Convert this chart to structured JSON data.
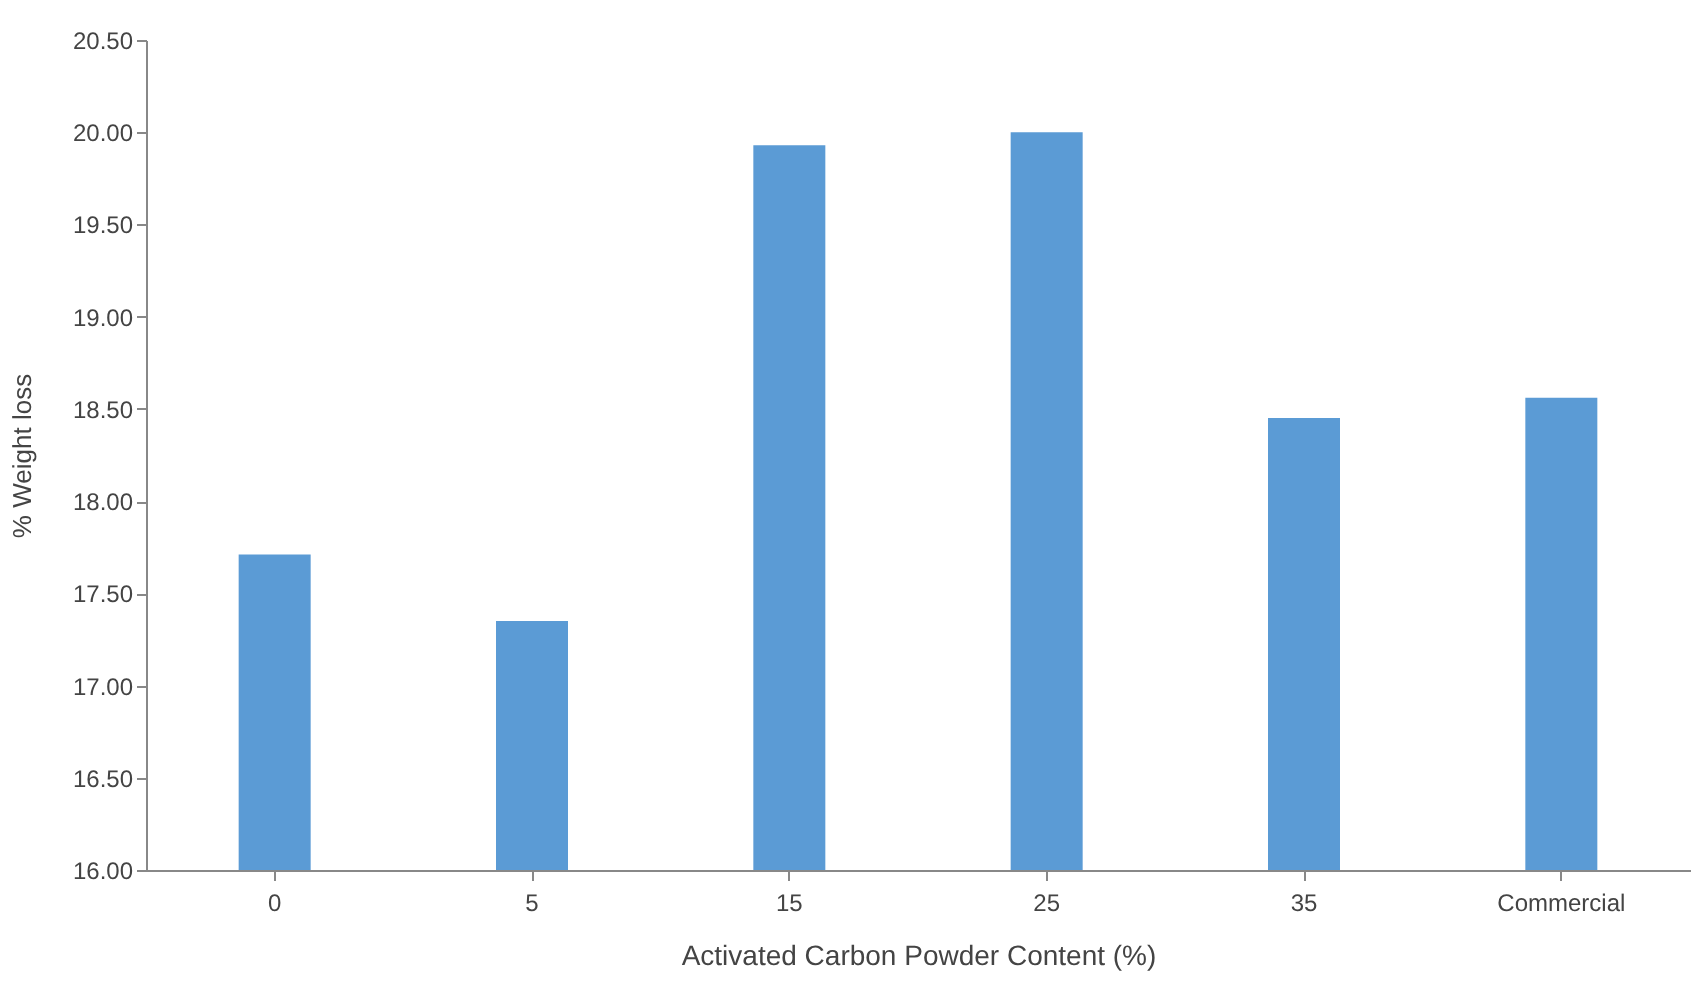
{
  "chart_data": {
    "type": "bar",
    "xlabel": "Activated Carbon Powder Content (%)",
    "ylabel": "% Weight loss",
    "categories": [
      "0",
      "5",
      "15",
      "25",
      "35",
      "Commercial"
    ],
    "values": [
      17.71,
      17.35,
      19.93,
      20.0,
      18.45,
      18.56
    ],
    "color": "#5b9bd5",
    "ylim": [
      16,
      20.5
    ],
    "yticks": [
      {
        "value": 16,
        "label": "16.00"
      },
      {
        "value": 16.5,
        "label": "16.50"
      },
      {
        "value": 17,
        "label": "17.00"
      },
      {
        "value": 17.5,
        "label": "17.50"
      },
      {
        "value": 18,
        "label": "18.00"
      },
      {
        "value": 18.5,
        "label": "18.50"
      },
      {
        "value": 19,
        "label": "19.00"
      },
      {
        "value": 19.5,
        "label": "19.50"
      },
      {
        "value": 20,
        "label": "20.00"
      },
      {
        "value": 20.5,
        "label": "20.50"
      }
    ],
    "grid": false
  }
}
